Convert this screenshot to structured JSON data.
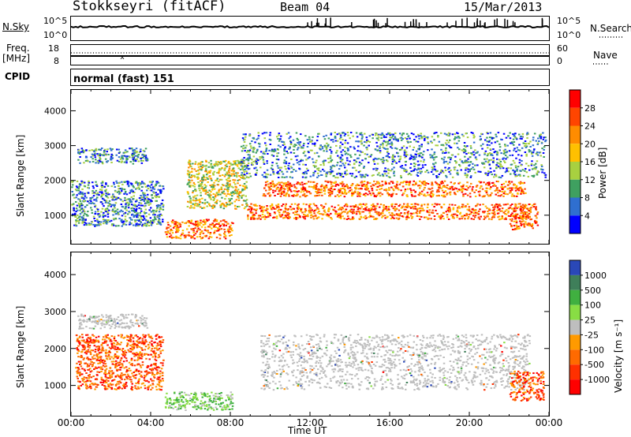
{
  "header": {
    "station": "Stokkseyri (fitACF)",
    "beam": "Beam 04",
    "date": "15/Mar/2013"
  },
  "top_panels": {
    "nsky_label": "N.Sky",
    "nsearch_label": "N.Search",
    "nsky_ticks": [
      "10^5",
      "10^0"
    ],
    "nsearch_ticks": [
      "10^5",
      "10^0"
    ],
    "freq_label_top": "Freq.",
    "freq_label_unit": "[MHz]",
    "freq_ticks": [
      "18",
      "8"
    ],
    "nave_label": "Nave",
    "nave_ticks": [
      "60",
      "0"
    ],
    "cpid_label": "CPID",
    "cpid_value": "normal (fast) 151"
  },
  "chart_data": [
    {
      "type": "heatmap",
      "panel": "power",
      "ylabel": "Slant Range [km]",
      "xlabel": "Time UT",
      "xlim": [
        0,
        24
      ],
      "ylim": [
        180,
        4600
      ],
      "y_ticks": [
        1000,
        2000,
        3000,
        4000
      ],
      "x_tick_labels": [
        "00:00",
        "04:00",
        "08:00",
        "12:00",
        "16:00",
        "20:00",
        "00:00"
      ],
      "colorbar": {
        "label": "Power [dB]",
        "ticks": [
          "28",
          "24",
          "20",
          "16",
          "12",
          "8",
          "4"
        ],
        "colors": [
          "#ff0000",
          "#ff4500",
          "#ff8c00",
          "#ffc000",
          "#a8d040",
          "#3fa060",
          "#2f6fd0",
          "#0000ff"
        ]
      },
      "regions": [
        {
          "desc": "western band",
          "t": [
            0.3,
            3.8
          ],
          "r": [
            2500,
            2950
          ],
          "level": "weak"
        },
        {
          "desc": "early scatter",
          "t": [
            0.0,
            4.6
          ],
          "r": [
            700,
            2000
          ],
          "level": "weak"
        },
        {
          "desc": "morning near-range",
          "t": [
            4.7,
            8.1
          ],
          "r": [
            350,
            900
          ],
          "level": "strong"
        },
        {
          "desc": "diagonal arc",
          "t": [
            5.8,
            8.8
          ],
          "r": [
            1200,
            2600
          ],
          "level": "moderate"
        },
        {
          "desc": "main band upper",
          "t": [
            9.6,
            22.8
          ],
          "r": [
            1550,
            2000
          ],
          "level": "strong"
        },
        {
          "desc": "main band lower",
          "t": [
            8.8,
            23.0
          ],
          "r": [
            900,
            1350
          ],
          "level": "strong"
        },
        {
          "desc": "evening patch",
          "t": [
            22.0,
            23.4
          ],
          "r": [
            600,
            1350
          ],
          "level": "strong"
        },
        {
          "desc": "upper scatter",
          "t": [
            8.5,
            23.8
          ],
          "r": [
            2100,
            3400
          ],
          "level": "weak"
        }
      ]
    },
    {
      "type": "heatmap",
      "panel": "velocity",
      "ylabel": "Slant Range [km]",
      "xlabel": "Time UT",
      "xlim": [
        0,
        24
      ],
      "ylim": [
        180,
        4600
      ],
      "y_ticks": [
        1000,
        2000,
        3000,
        4000
      ],
      "x_tick_labels": [
        "00:00",
        "04:00",
        "08:00",
        "12:00",
        "16:00",
        "20:00",
        "00:00"
      ],
      "colorbar": {
        "label": "Velocity [m s⁻¹]",
        "ticks": [
          "1000",
          "500",
          "100",
          "25",
          "-25",
          "-100",
          "-500",
          "-1000"
        ],
        "colors": [
          "#2a48b8",
          "#3f7f5a",
          "#40b040",
          "#88dd44",
          "#bebebe",
          "#ff9a00",
          "#ff6a00",
          "#ff3000",
          "#ff0000"
        ]
      },
      "regions": [
        {
          "desc": "grey ground-scatter band",
          "t": [
            0.3,
            3.8
          ],
          "r": [
            2550,
            2950
          ],
          "v": 0
        },
        {
          "desc": "orange early scatter",
          "t": [
            0.2,
            4.6
          ],
          "r": [
            900,
            2400
          ],
          "v": -300
        },
        {
          "desc": "green near-range",
          "t": [
            4.7,
            8.1
          ],
          "r": [
            350,
            850
          ],
          "v": 150
        },
        {
          "desc": "grey central mass",
          "t": [
            9.5,
            23.0
          ],
          "r": [
            900,
            2400
          ],
          "v": 0
        },
        {
          "desc": "evening negative",
          "t": [
            22.0,
            23.7
          ],
          "r": [
            600,
            1400
          ],
          "v": -600
        }
      ]
    }
  ],
  "xlabel": "Time UT"
}
